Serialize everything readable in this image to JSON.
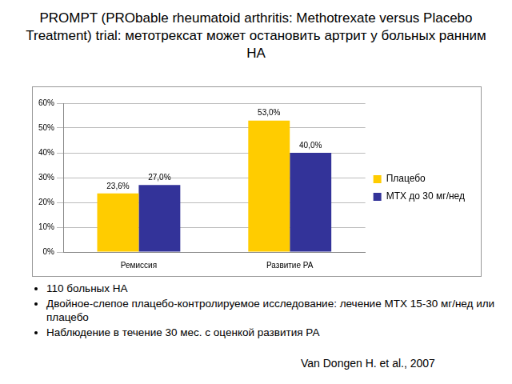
{
  "title": "PROMPT (PRObable rheumatoid arthritis: Methotrexate versus Placebo Treatment) trial: метотрексат может остановить артрит у больных ранним НА",
  "chart_data": {
    "type": "bar",
    "categories": [
      "Ремиссия",
      "Развитие РА"
    ],
    "series": [
      {
        "name": "Плацебо",
        "color": "#ffcc00",
        "values": [
          23.6,
          53.0
        ],
        "value_labels": [
          "23,6%",
          "53,0%"
        ]
      },
      {
        "name": "МТХ до 30 мг/нед",
        "color": "#333399",
        "values": [
          27.0,
          40.0
        ],
        "value_labels": [
          "27,0%",
          "40,0%"
        ]
      }
    ],
    "ylim": [
      0,
      60
    ],
    "yticks": [
      {
        "value": 0,
        "label": "0%"
      },
      {
        "value": 10,
        "label": "10%"
      },
      {
        "value": 20,
        "label": "20%"
      },
      {
        "value": 30,
        "label": "30%"
      },
      {
        "value": 40,
        "label": "40%"
      },
      {
        "value": 50,
        "label": "50%"
      },
      {
        "value": 60,
        "label": "60%"
      }
    ],
    "grid": true,
    "legend": "right",
    "data_labels": true
  },
  "bullets": [
    "110 больных НА",
    "Двойное-слепое плацебо-контролируемое исследование: лечение МТХ 15-30 мг/нед или плацебо",
    "Наблюдение в течение 30 мес. с оценкой развития РА"
  ],
  "citation": "Van Dongen H. et al., 2007"
}
